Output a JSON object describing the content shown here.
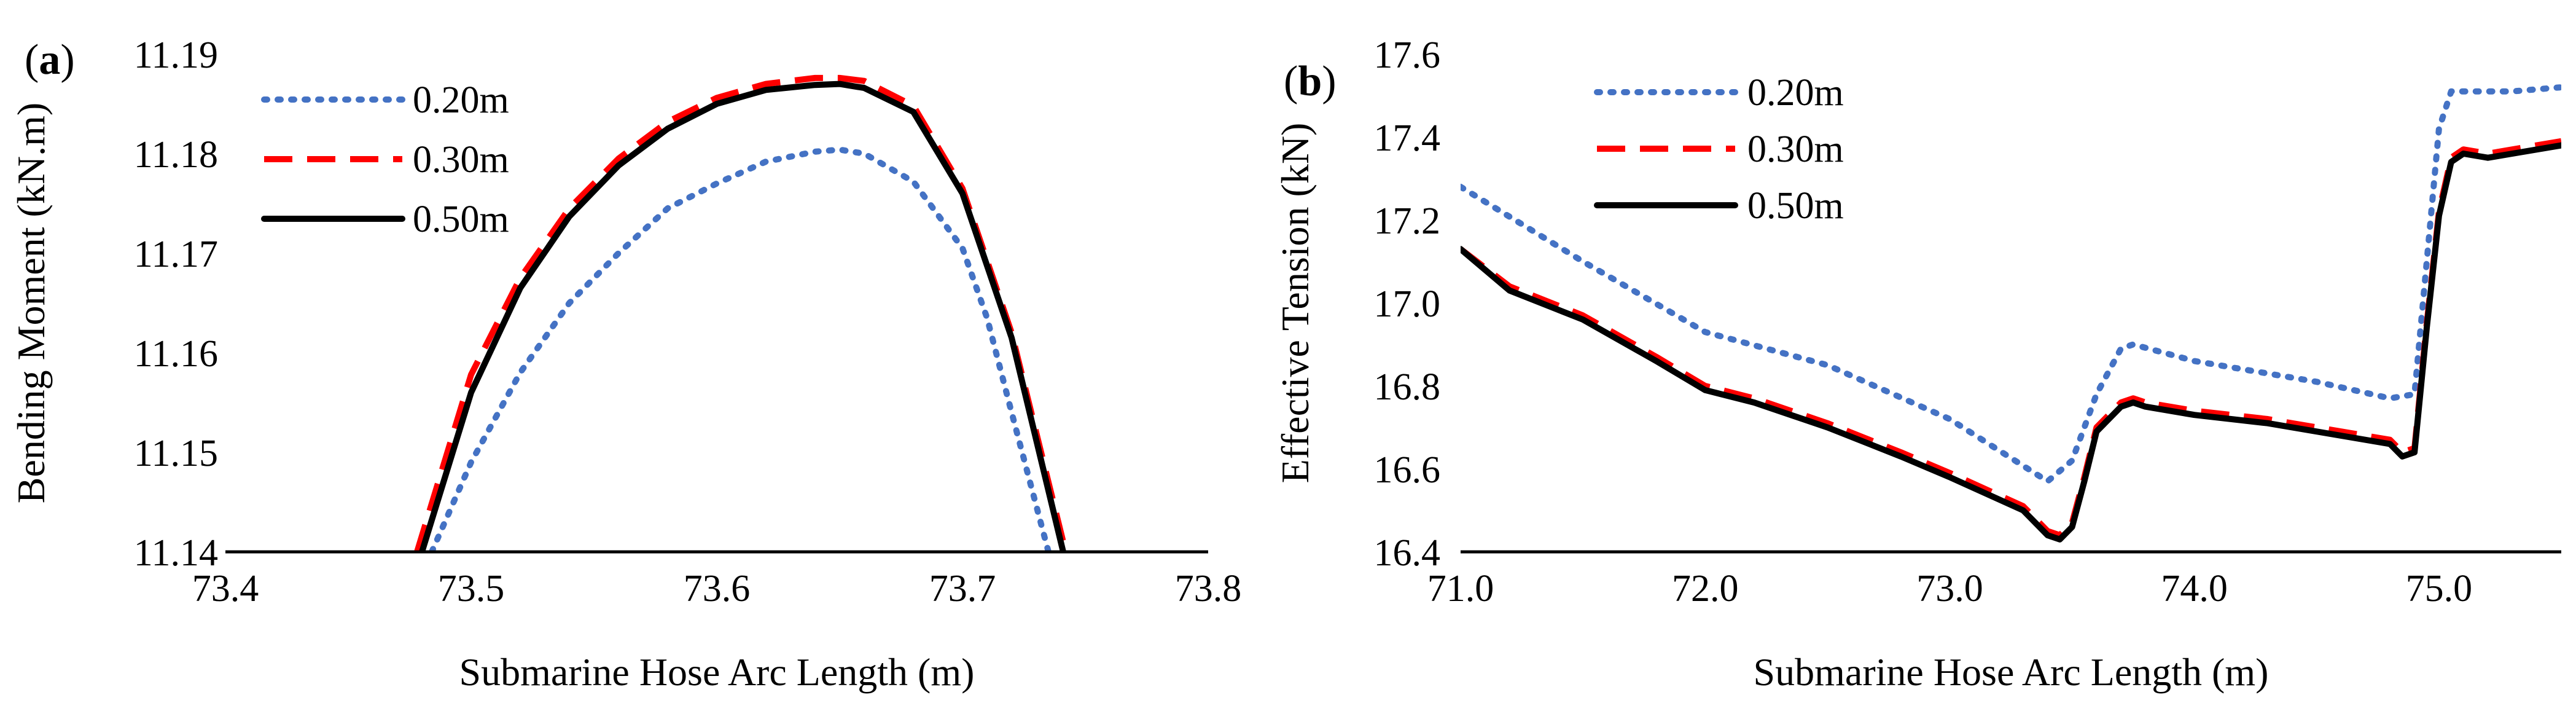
{
  "chart_data": [
    {
      "type": "line",
      "panel_label": "a",
      "xlabel": "Submarine Hose Arc Length (m)",
      "ylabel": "Bending Moment (kN.m)",
      "xlim": [
        73.4,
        73.8
      ],
      "ylim": [
        11.14,
        11.19
      ],
      "x_ticks": [
        "73.4",
        "73.5",
        "73.6",
        "73.7",
        "73.8"
      ],
      "y_ticks": [
        "11.14",
        "11.15",
        "11.16",
        "11.17",
        "11.18",
        "11.19"
      ],
      "grid": false,
      "legend_position": "top-left",
      "series": [
        {
          "name": "0.20m",
          "color": "#4472C4",
          "dash": "dotted",
          "x": [
            73.484,
            73.5,
            73.52,
            73.54,
            73.56,
            73.58,
            73.6,
            73.62,
            73.64,
            73.65,
            73.66,
            73.68,
            73.7,
            73.71,
            73.72,
            73.735
          ],
          "y": [
            11.14,
            11.149,
            11.158,
            11.165,
            11.17,
            11.1745,
            11.177,
            11.1792,
            11.1802,
            11.1804,
            11.18,
            11.1772,
            11.1705,
            11.1635,
            11.154,
            11.14
          ]
        },
        {
          "name": "0.30m",
          "color": "#FF0000",
          "dash": "dashed",
          "x": [
            73.478,
            73.5,
            73.52,
            73.54,
            73.56,
            73.58,
            73.6,
            73.62,
            73.64,
            73.65,
            73.66,
            73.68,
            73.7,
            73.72,
            73.742
          ],
          "y": [
            11.14,
            11.1578,
            11.1675,
            11.1745,
            11.1795,
            11.1832,
            11.1856,
            11.187,
            11.1876,
            11.1876,
            11.1873,
            11.1848,
            11.1765,
            11.162,
            11.14
          ]
        },
        {
          "name": "0.50m",
          "color": "#000000",
          "dash": "solid",
          "x": [
            73.48,
            73.5,
            73.52,
            73.54,
            73.56,
            73.58,
            73.6,
            73.62,
            73.64,
            73.65,
            73.66,
            73.68,
            73.7,
            73.72,
            73.741
          ],
          "y": [
            11.14,
            11.156,
            11.1665,
            11.1737,
            11.1788,
            11.1825,
            11.185,
            11.1864,
            11.1869,
            11.187,
            11.1866,
            11.1842,
            11.176,
            11.1615,
            11.14
          ]
        }
      ]
    },
    {
      "type": "line",
      "panel_label": "b",
      "xlabel": "Submarine Hose Arc Length (m)",
      "ylabel": "Effective Tension (kN)",
      "xlim": [
        71.0,
        75.5
      ],
      "ylim": [
        16.4,
        17.6
      ],
      "x_ticks": [
        "71.0",
        "72.0",
        "73.0",
        "74.0",
        "75.0"
      ],
      "y_ticks": [
        "16.4",
        "16.6",
        "16.8",
        "17.0",
        "17.2",
        "17.4",
        "17.6"
      ],
      "grid": false,
      "legend_position": "top-left",
      "series": [
        {
          "name": "0.20m",
          "color": "#4472C4",
          "dash": "dotted",
          "x": [
            71.0,
            71.5,
            72.0,
            72.5,
            73.0,
            73.4,
            73.5,
            73.6,
            73.7,
            73.75,
            74.0,
            74.5,
            74.8,
            74.9,
            74.95,
            75.0,
            75.05,
            75.1,
            75.3,
            75.5
          ],
          "y": [
            17.28,
            17.1,
            16.93,
            16.85,
            16.72,
            16.57,
            16.62,
            16.78,
            16.89,
            16.9,
            16.86,
            16.81,
            16.77,
            16.78,
            17.1,
            17.42,
            17.51,
            17.51,
            17.51,
            17.52
          ]
        },
        {
          "name": "0.30m",
          "color": "#FF0000",
          "dash": "dashed",
          "x": [
            71.0,
            71.2,
            71.5,
            71.8,
            72.0,
            72.2,
            72.5,
            72.8,
            73.0,
            73.3,
            73.4,
            73.45,
            73.5,
            73.55,
            73.6,
            73.7,
            73.75,
            73.8,
            74.0,
            74.3,
            74.6,
            74.8,
            74.85,
            74.9,
            74.95,
            75.0,
            75.05,
            75.1,
            75.2,
            75.3,
            75.5
          ],
          "y": [
            17.13,
            17.04,
            16.97,
            16.87,
            16.8,
            16.77,
            16.71,
            16.64,
            16.59,
            16.51,
            16.45,
            16.44,
            16.47,
            16.58,
            16.7,
            16.76,
            16.77,
            16.76,
            16.74,
            16.72,
            16.69,
            16.67,
            16.64,
            16.65,
            16.95,
            17.22,
            17.35,
            17.37,
            17.36,
            17.37,
            17.39
          ]
        },
        {
          "name": "0.50m",
          "color": "#000000",
          "dash": "solid",
          "x": [
            71.0,
            71.2,
            71.5,
            71.8,
            72.0,
            72.2,
            72.5,
            72.8,
            73.0,
            73.3,
            73.4,
            73.45,
            73.5,
            73.55,
            73.6,
            73.7,
            73.75,
            73.8,
            74.0,
            74.3,
            74.6,
            74.8,
            74.85,
            74.9,
            74.95,
            75.0,
            75.05,
            75.1,
            75.2,
            75.3,
            75.5
          ],
          "y": [
            17.13,
            17.03,
            16.96,
            16.86,
            16.79,
            16.76,
            16.7,
            16.63,
            16.58,
            16.5,
            16.44,
            16.43,
            16.46,
            16.57,
            16.69,
            16.75,
            16.76,
            16.75,
            16.73,
            16.71,
            16.68,
            16.66,
            16.63,
            16.64,
            16.94,
            17.21,
            17.34,
            17.36,
            17.35,
            17.36,
            17.38
          ]
        }
      ]
    }
  ]
}
